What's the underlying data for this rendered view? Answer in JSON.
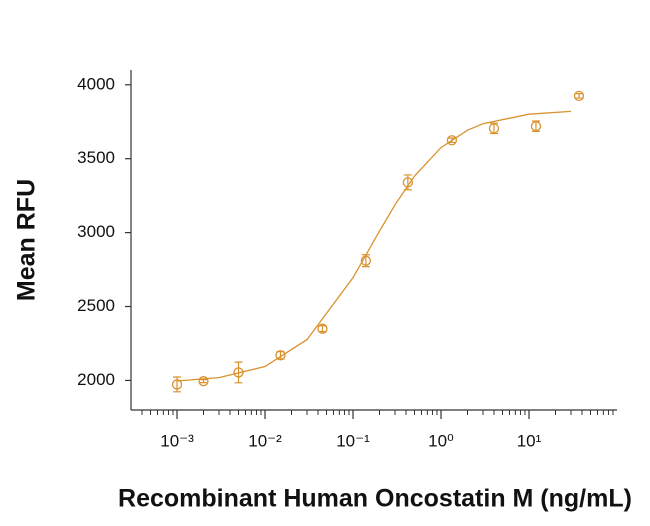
{
  "chart_data": {
    "type": "scatter",
    "x_label": "Recombinant Human Oncostatin M (ng/mL)",
    "y_label": "Mean RFU",
    "x_log": true,
    "xlim": [
      0.0003,
      100
    ],
    "xticks": [
      {
        "value": 0.001,
        "label": "10⁻³"
      },
      {
        "value": 0.01,
        "label": "10⁻²"
      },
      {
        "value": 0.1,
        "label": "10⁻¹"
      },
      {
        "value": 1,
        "label": "10⁰"
      },
      {
        "value": 10,
        "label": "10¹"
      }
    ],
    "xminorticks": [
      0.0004,
      0.0005,
      0.0006,
      0.0007,
      0.0008,
      0.0009,
      0.002,
      0.003,
      0.004,
      0.005,
      0.006,
      0.007,
      0.008,
      0.009,
      0.02,
      0.03,
      0.04,
      0.05,
      0.06,
      0.07,
      0.08,
      0.09,
      0.2,
      0.3,
      0.4,
      0.5,
      0.6,
      0.7,
      0.8,
      0.9,
      2,
      3,
      4,
      5,
      6,
      7,
      8,
      9,
      20,
      30,
      40,
      50,
      60,
      70,
      80,
      90
    ],
    "ylim": [
      1800,
      4100
    ],
    "yticks": [
      2000,
      2500,
      3000,
      3500,
      4000
    ],
    "color": "#d9922e",
    "series": [
      {
        "x": [
          0.001,
          0.002,
          0.005,
          0.015,
          0.045,
          0.14,
          0.42,
          1.33,
          4,
          12,
          37
        ],
        "values": [
          1973,
          1995,
          2054,
          2170,
          2350,
          2810,
          3340,
          3625,
          3705,
          3720,
          3925
        ],
        "errors": [
          50,
          10,
          70,
          25,
          20,
          40,
          50,
          15,
          35,
          35,
          15
        ]
      }
    ],
    "fit": {
      "x": [
        0.001,
        0.003,
        0.01,
        0.03,
        0.1,
        0.2,
        0.3,
        0.5,
        1,
        2,
        3,
        10,
        30
      ],
      "values": [
        1996,
        2019,
        2094,
        2276,
        2695,
        3010,
        3188,
        3383,
        3575,
        3693,
        3737,
        3801,
        3820
      ]
    }
  }
}
